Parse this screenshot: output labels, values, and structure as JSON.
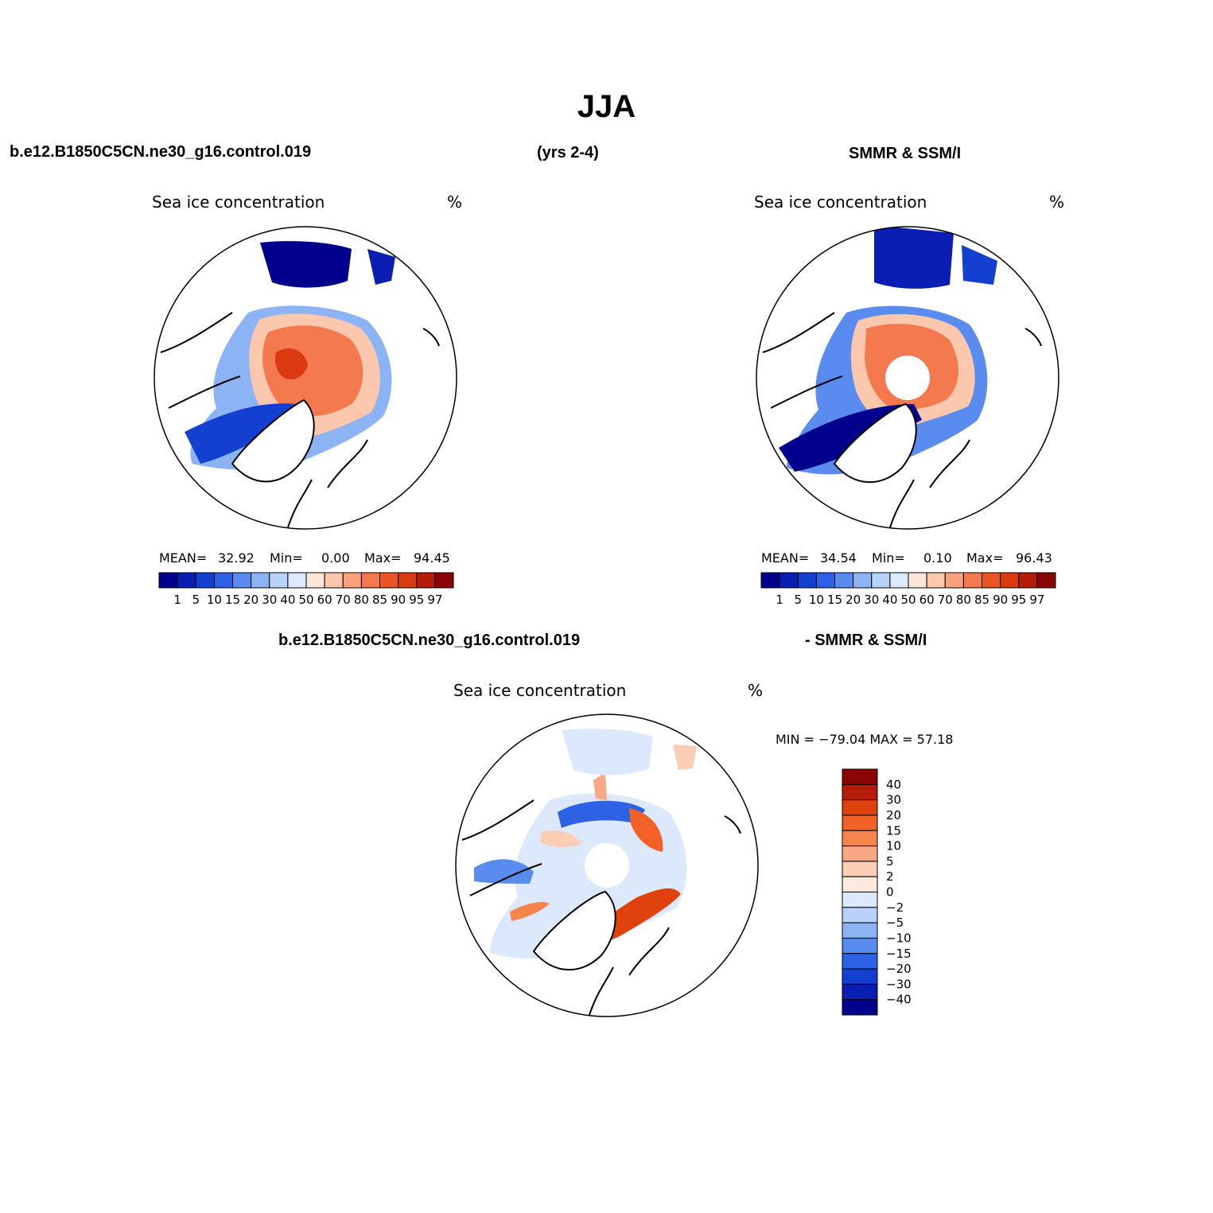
{
  "figure": {
    "title": "JJA"
  },
  "header": {
    "model_case": "b.e12.B1850C5CN.ne30_g16.control.019",
    "period": "(yrs 2-4)",
    "obs_name": "SMMR & SSM/I"
  },
  "panels": {
    "model": {
      "title": "Sea ice concentration",
      "units": "%",
      "mean_label": "MEAN=",
      "mean": "32.92",
      "min_label": "Min=",
      "min": "0.00",
      "max_label": "Max=",
      "max": "94.45"
    },
    "obs": {
      "title": "Sea ice concentration",
      "units": "%",
      "mean_label": "MEAN=",
      "mean": "34.54",
      "min_label": "Min=",
      "min": "0.10",
      "max_label": "Max=",
      "max": "96.43"
    },
    "diff": {
      "left_header": "b.e12.B1850C5CN.ne30_g16.control.019",
      "right_header": "- SMMR & SSM/I",
      "title": "Sea ice concentration",
      "units": "%",
      "minmax_text": "MIN = −79.04 MAX =   57.18"
    }
  },
  "colorbar_conc": {
    "labels": [
      "1",
      "5",
      "10",
      "15",
      "20",
      "30",
      "40",
      "50",
      "60",
      "70",
      "80",
      "85",
      "90",
      "95",
      "97"
    ],
    "colors": [
      "#00008c",
      "#0a1eb4",
      "#1440d2",
      "#2d62e6",
      "#5a8cf0",
      "#8cb4f5",
      "#b9d2fa",
      "#dce9fd",
      "#fde7d8",
      "#fbc8ad",
      "#f8a27d",
      "#f4794e",
      "#eb5525",
      "#db3a10",
      "#b51d08",
      "#8a0606"
    ]
  },
  "colorbar_diff": {
    "labels": [
      "40",
      "30",
      "20",
      "15",
      "10",
      "5",
      "2",
      "0",
      "−2",
      "−5",
      "−10",
      "−15",
      "−20",
      "−30",
      "−40"
    ],
    "colors": [
      "#8a0606",
      "#b51d08",
      "#e0420e",
      "#f26227",
      "#f7844c",
      "#f9a885",
      "#fbcdb5",
      "#fde9de",
      "#dce9fd",
      "#b9d2fa",
      "#8cb4f5",
      "#5a8cf0",
      "#2d62e6",
      "#1440d2",
      "#0a1eb4",
      "#00008c"
    ]
  }
}
